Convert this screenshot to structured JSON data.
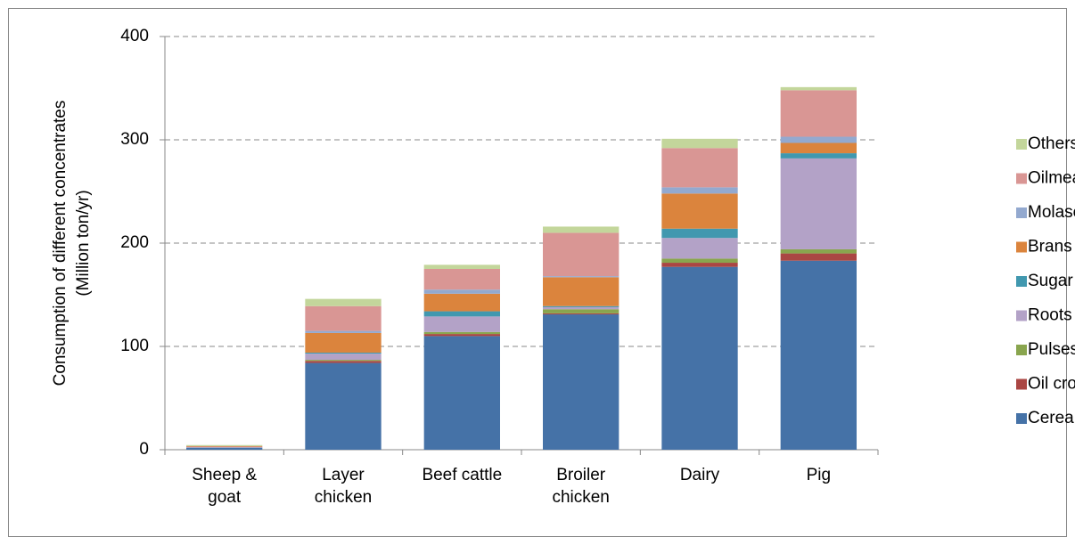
{
  "chart_data": {
    "type": "stacked_bar",
    "ylabel": [
      "Consumption of different concentrates",
      "(Million ton/yr)"
    ],
    "categories": [
      "Sheep &\ngoat",
      "Layer\nchicken",
      "Beef cattle",
      "Broiler\nchicken",
      "Dairy",
      "Pig"
    ],
    "series": [
      {
        "name": "Cereals",
        "color": "#4572a7",
        "values": [
          2,
          84,
          110,
          131,
          177,
          183
        ]
      },
      {
        "name": "Oil crops",
        "color": "#aa4643",
        "values": [
          0,
          2,
          2,
          1,
          4,
          7
        ]
      },
      {
        "name": "Pulses",
        "color": "#89a54e",
        "values": [
          0,
          1,
          2,
          4,
          4,
          4
        ]
      },
      {
        "name": "Roots",
        "color": "#b3a2c7",
        "values": [
          0.5,
          6,
          15,
          2,
          20,
          88
        ]
      },
      {
        "name": "Sugar crops",
        "color": "#4198af",
        "values": [
          0,
          1,
          5,
          1,
          9,
          5
        ]
      },
      {
        "name": "Brans",
        "color": "#db843d",
        "values": [
          0.5,
          19,
          17,
          28,
          34,
          10
        ]
      },
      {
        "name": "Molases",
        "color": "#93a9cf",
        "values": [
          0,
          2,
          4,
          1,
          6,
          6
        ]
      },
      {
        "name": "Oilmeals",
        "color": "#d99694",
        "values": [
          0.5,
          24,
          20,
          42,
          38,
          45
        ]
      },
      {
        "name": "Others",
        "color": "#c3d69b",
        "values": [
          1,
          7,
          4,
          6,
          9,
          3
        ]
      }
    ],
    "ylim": [
      0,
      400
    ],
    "yticks": [
      0,
      100,
      200,
      300,
      400
    ],
    "grid": true,
    "legend": "right"
  }
}
